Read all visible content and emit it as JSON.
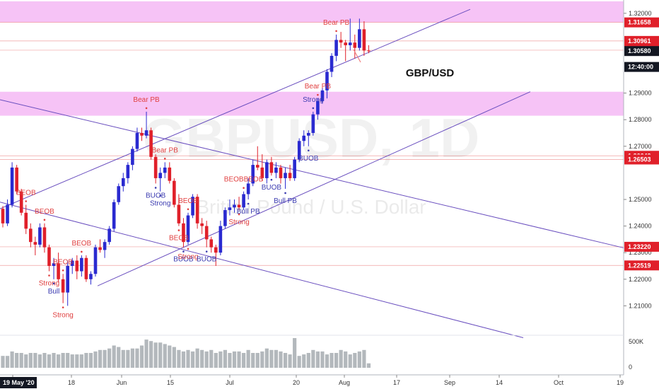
{
  "chart_data": {
    "type": "candlestick",
    "symbol_label": "GBP/USD",
    "watermark": {
      "main": "GBPUSD, 1D",
      "sub": "British Pound / U.S. Dollar"
    },
    "colors": {
      "up": "#2a2ad0",
      "down": "#e0202a",
      "zone": "#f4b8f4",
      "trend": "#6a4fbf",
      "axis_tag": "#e0202a",
      "price_tag": "#131722"
    },
    "ylim": [
      1.2,
      1.325
    ],
    "y_ticks": [
      "1.32000",
      "1.29000",
      "1.28000",
      "1.27000",
      "1.25000",
      "1.24000",
      "1.23000",
      "1.22000",
      "1.21000"
    ],
    "x_labels": [
      "May",
      "18",
      "Jun",
      "15",
      "Jul",
      "20",
      "Aug",
      "17",
      "Sep",
      "14",
      "Oct",
      "19"
    ],
    "date_tag": "19 May '20",
    "price_tags": [
      {
        "value": 1.31658,
        "label": "1.31658",
        "style": "level"
      },
      {
        "value": 1.30961,
        "label": "1.30961",
        "style": "level"
      },
      {
        "value": 1.30613,
        "label": "1.30613",
        "style": "level"
      },
      {
        "value": 1.3058,
        "label": "1.30580",
        "style": "current"
      },
      {
        "value": 1.29983,
        "label": "12:40:00",
        "style": "current"
      },
      {
        "value": 1.26642,
        "label": "1.26642",
        "style": "level"
      },
      {
        "value": 1.26503,
        "label": "1.26503",
        "style": "level"
      },
      {
        "value": 1.2322,
        "label": "1.23220",
        "style": "level"
      },
      {
        "value": 1.22519,
        "label": "1.22519",
        "style": "level"
      }
    ],
    "zones": [
      {
        "from": 1.3165,
        "to": 1.3245
      },
      {
        "from": 1.2815,
        "to": 1.2905
      }
    ],
    "candles": [
      [
        1.2465,
        1.2475,
        1.2395,
        1.241
      ],
      [
        1.241,
        1.25,
        1.24,
        1.248
      ],
      [
        1.248,
        1.264,
        1.247,
        1.262
      ],
      [
        1.262,
        1.263,
        1.252,
        1.253
      ],
      [
        1.253,
        1.254,
        1.244,
        1.245
      ],
      [
        1.245,
        1.248,
        1.237,
        1.239
      ],
      [
        1.239,
        1.241,
        1.232,
        1.234
      ],
      [
        1.234,
        1.236,
        1.229,
        1.233
      ],
      [
        1.233,
        1.241,
        1.232,
        1.2395
      ],
      [
        1.2395,
        1.241,
        1.23,
        1.232
      ],
      [
        1.232,
        1.233,
        1.223,
        1.225
      ],
      [
        1.225,
        1.228,
        1.22,
        1.226
      ],
      [
        1.226,
        1.23,
        1.219,
        1.22
      ],
      [
        1.22,
        1.222,
        1.211,
        1.215
      ],
      [
        1.215,
        1.227,
        1.21,
        1.225
      ],
      [
        1.225,
        1.228,
        1.222,
        1.227
      ],
      [
        1.227,
        1.229,
        1.22,
        1.223
      ],
      [
        1.223,
        1.229,
        1.221,
        1.228
      ],
      [
        1.228,
        1.229,
        1.219,
        1.22
      ],
      [
        1.22,
        1.223,
        1.218,
        1.222
      ],
      [
        1.222,
        1.233,
        1.221,
        1.232
      ],
      [
        1.232,
        1.235,
        1.23,
        1.231
      ],
      [
        1.231,
        1.235,
        1.228,
        1.234
      ],
      [
        1.234,
        1.24,
        1.233,
        1.239
      ],
      [
        1.239,
        1.25,
        1.238,
        1.249
      ],
      [
        1.249,
        1.256,
        1.248,
        1.255
      ],
      [
        1.255,
        1.26,
        1.253,
        1.258
      ],
      [
        1.258,
        1.264,
        1.256,
        1.263
      ],
      [
        1.263,
        1.27,
        1.261,
        1.269
      ],
      [
        1.269,
        1.277,
        1.268,
        1.275
      ],
      [
        1.275,
        1.277,
        1.272,
        1.274
      ],
      [
        1.274,
        1.283,
        1.273,
        1.276
      ],
      [
        1.276,
        1.277,
        1.265,
        1.266
      ],
      [
        1.266,
        1.267,
        1.256,
        1.258
      ],
      [
        1.258,
        1.262,
        1.253,
        1.26
      ],
      [
        1.26,
        1.264,
        1.258,
        1.262
      ],
      [
        1.262,
        1.264,
        1.256,
        1.257
      ],
      [
        1.257,
        1.258,
        1.247,
        1.248
      ],
      [
        1.248,
        1.252,
        1.24,
        1.241
      ],
      [
        1.241,
        1.243,
        1.232,
        1.234
      ],
      [
        1.234,
        1.245,
        1.233,
        1.244
      ],
      [
        1.244,
        1.252,
        1.243,
        1.251
      ],
      [
        1.251,
        1.252,
        1.239,
        1.241
      ],
      [
        1.241,
        1.243,
        1.237,
        1.24
      ],
      [
        1.24,
        1.242,
        1.232,
        1.235
      ],
      [
        1.235,
        1.236,
        1.23,
        1.232
      ],
      [
        1.232,
        1.233,
        1.225,
        1.23
      ],
      [
        1.23,
        1.242,
        1.229,
        1.24
      ],
      [
        1.24,
        1.247,
        1.239,
        1.246
      ],
      [
        1.246,
        1.25,
        1.244,
        1.247
      ],
      [
        1.247,
        1.25,
        1.245,
        1.248
      ],
      [
        1.248,
        1.251,
        1.246,
        1.247
      ],
      [
        1.247,
        1.253,
        1.246,
        1.252
      ],
      [
        1.252,
        1.258,
        1.25,
        1.256
      ],
      [
        1.256,
        1.265,
        1.255,
        1.263
      ],
      [
        1.263,
        1.27,
        1.261,
        1.262
      ],
      [
        1.262,
        1.267,
        1.257,
        1.258
      ],
      [
        1.258,
        1.265,
        1.256,
        1.264
      ],
      [
        1.264,
        1.266,
        1.259,
        1.26
      ],
      [
        1.26,
        1.264,
        1.258,
        1.262
      ],
      [
        1.262,
        1.263,
        1.256,
        1.258
      ],
      [
        1.258,
        1.262,
        1.254,
        1.26
      ],
      [
        1.26,
        1.263,
        1.257,
        1.258
      ],
      [
        1.258,
        1.266,
        1.257,
        1.265
      ],
      [
        1.265,
        1.273,
        1.264,
        1.272
      ],
      [
        1.272,
        1.276,
        1.27,
        1.274
      ],
      [
        1.274,
        1.276,
        1.27,
        1.275
      ],
      [
        1.275,
        1.283,
        1.274,
        1.282
      ],
      [
        1.282,
        1.288,
        1.28,
        1.287
      ],
      [
        1.287,
        1.292,
        1.286,
        1.291
      ],
      [
        1.291,
        1.299,
        1.288,
        1.298
      ],
      [
        1.298,
        1.305,
        1.296,
        1.304
      ],
      [
        1.304,
        1.312,
        1.302,
        1.31
      ],
      [
        1.31,
        1.313,
        1.307,
        1.309
      ],
      [
        1.309,
        1.31,
        1.302,
        1.308
      ],
      [
        1.308,
        1.318,
        1.306,
        1.309
      ],
      [
        1.309,
        1.312,
        1.303,
        1.307
      ],
      [
        1.307,
        1.318,
        1.306,
        1.314
      ],
      [
        1.314,
        1.317,
        1.304,
        1.306
      ],
      [
        1.306,
        1.308,
        1.305,
        1.3058
      ]
    ],
    "volume": [
      0.4,
      0.4,
      0.55,
      0.5,
      0.5,
      0.45,
      0.5,
      0.5,
      0.45,
      0.5,
      0.45,
      0.5,
      0.45,
      0.5,
      0.5,
      0.45,
      0.45,
      0.45,
      0.5,
      0.5,
      0.55,
      0.6,
      0.6,
      0.65,
      0.75,
      0.7,
      0.6,
      0.6,
      0.65,
      0.65,
      0.75,
      0.95,
      0.9,
      0.85,
      0.85,
      0.8,
      0.75,
      0.7,
      0.6,
      0.55,
      0.6,
      0.55,
      0.65,
      0.6,
      0.55,
      0.6,
      0.5,
      0.55,
      0.6,
      0.5,
      0.55,
      0.55,
      0.5,
      0.6,
      0.5,
      0.5,
      0.55,
      0.65,
      0.6,
      0.6,
      0.55,
      0.5,
      0.45,
      1.0,
      0.4,
      0.45,
      0.5,
      0.6,
      0.55,
      0.55,
      0.45,
      0.5,
      0.5,
      0.6,
      0.55,
      0.45,
      0.5,
      0.55,
      0.6,
      0.15
    ],
    "volume_axis": [
      "500K",
      "0"
    ],
    "annotations": [
      {
        "text": "BEOB",
        "candle": 5,
        "kind": "bear",
        "pos": "above"
      },
      {
        "text": "BEOB",
        "candle": 9,
        "kind": "bear",
        "pos": "above"
      },
      {
        "text": "Strong",
        "candle": 10,
        "kind": "bear",
        "pos": "below"
      },
      {
        "text": "BEOB",
        "candle": 13,
        "kind": "bear",
        "pos": "above"
      },
      {
        "text": "Bull",
        "candle": 11,
        "kind": "bull",
        "pos": "below"
      },
      {
        "text": "Strong",
        "candle": 13,
        "kind": "bear",
        "pos": "below"
      },
      {
        "text": "BEOB",
        "candle": 17,
        "kind": "bear",
        "pos": "above"
      },
      {
        "text": "Bear PB",
        "candle": 31,
        "kind": "bear",
        "pos": "above"
      },
      {
        "text": "Bear PB",
        "candle": 35,
        "kind": "bear",
        "pos": "above"
      },
      {
        "text": "Strong",
        "candle": 34,
        "kind": "bull",
        "pos": "below"
      },
      {
        "text": "BUOB",
        "candle": 33,
        "kind": "bull",
        "pos": "below"
      },
      {
        "text": "BEOB",
        "candle": 40,
        "kind": "bear",
        "pos": "above"
      },
      {
        "text": "BEOB",
        "candle": 38,
        "kind": "bear",
        "pos": "below"
      },
      {
        "text": "BUOB",
        "candle": 39,
        "kind": "bull",
        "pos": "below"
      },
      {
        "text": "Strong",
        "candle": 40,
        "kind": "bear",
        "pos": "below"
      },
      {
        "text": "BUOB",
        "candle": 44,
        "kind": "bull",
        "pos": "below"
      },
      {
        "text": "BEOBBEOB",
        "candle": 52,
        "kind": "bear",
        "pos": "above"
      },
      {
        "text": "Strong",
        "candle": 51,
        "kind": "bear",
        "pos": "below"
      },
      {
        "text": "Bull PB",
        "candle": 53,
        "kind": "bull",
        "pos": "below"
      },
      {
        "text": "BUOB",
        "candle": 58,
        "kind": "bull",
        "pos": "below"
      },
      {
        "text": "Bull PB",
        "candle": 61,
        "kind": "bull",
        "pos": "below"
      },
      {
        "text": "BUOB",
        "candle": 66,
        "kind": "bull",
        "pos": "below"
      },
      {
        "text": "Strong",
        "candle": 67,
        "kind": "bull",
        "pos": "above"
      },
      {
        "text": "Bear PB",
        "candle": 68,
        "kind": "bear",
        "pos": "above"
      },
      {
        "text": "Bear PB",
        "candle": 72,
        "kind": "bear",
        "pos": "above"
      }
    ]
  }
}
